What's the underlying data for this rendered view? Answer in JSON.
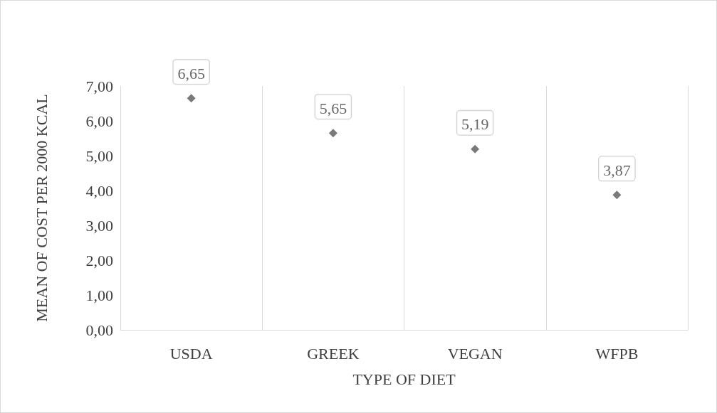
{
  "chart_data": {
    "type": "scatter",
    "xlabel": "TYPE OF DIET",
    "ylabel": "MEAN OF COST PER 2000 KCAL",
    "categories": [
      "USDA",
      "GREEK",
      "VEGAN",
      "WFPB"
    ],
    "series": [
      {
        "color": "#595959",
        "values": [
          6.65,
          5.65,
          5.19,
          3.87
        ],
        "value_labels": [
          "6,65",
          "5,65",
          "5,19",
          "3,87"
        ]
      }
    ],
    "ylim": [
      0,
      7
    ],
    "yticks": [
      {
        "value": 0,
        "label": "0,00"
      },
      {
        "value": 1,
        "label": "1,00"
      },
      {
        "value": 2,
        "label": "2,00"
      },
      {
        "value": 3,
        "label": "3,00"
      },
      {
        "value": 4,
        "label": "4,00"
      },
      {
        "value": 5,
        "label": "5,00"
      },
      {
        "value": 6,
        "label": "6,00"
      },
      {
        "value": 7,
        "label": "7,00"
      }
    ],
    "grid": "x",
    "marker": "diamond"
  }
}
